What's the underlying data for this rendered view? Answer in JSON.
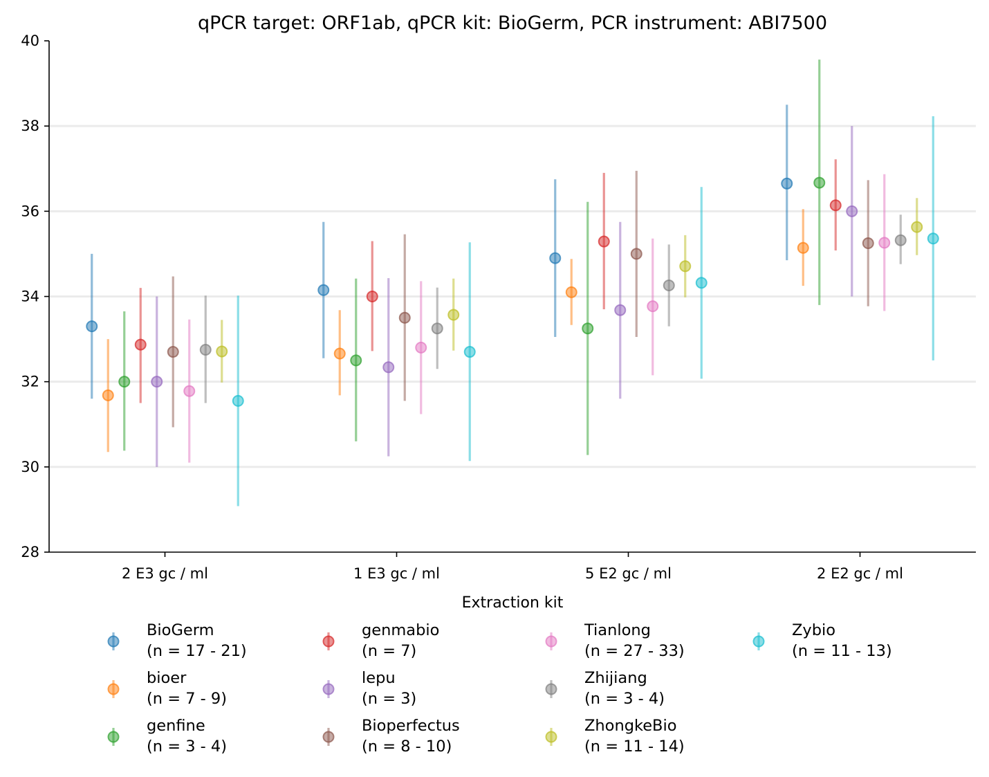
{
  "chart_data": {
    "type": "scatter",
    "title": "qPCR target: ORF1ab, qPCR kit: BioGerm, PCR instrument: ABI7500",
    "xlabel": "",
    "ylabel": "",
    "legend_title": "Extraction kit",
    "legend_placement": "bottom",
    "ylim": [
      28,
      40
    ],
    "yticks": [
      "28",
      "30",
      "32",
      "34",
      "36",
      "38",
      "40"
    ],
    "grid": "horizontal",
    "categories": [
      "2 E3 gc / ml",
      "1 E3 gc / ml",
      "5 E2 gc / ml",
      "2 E2 gc / ml"
    ],
    "series": [
      {
        "name": "BioGerm",
        "n_label": "(n = 17 - 21)",
        "color": "#1f77b4",
        "values": [
          33.3,
          34.15,
          34.9,
          36.65
        ],
        "lower": [
          31.6,
          32.55,
          33.05,
          34.85
        ],
        "upper": [
          35.0,
          35.75,
          36.75,
          38.5
        ]
      },
      {
        "name": "bioer",
        "n_label": "(n = 7 - 9)",
        "color": "#ff7f0e",
        "values": [
          31.68,
          32.66,
          34.1,
          35.14
        ],
        "lower": [
          30.35,
          31.68,
          33.33,
          34.25
        ],
        "upper": [
          33.0,
          33.68,
          34.88,
          36.05
        ]
      },
      {
        "name": "genfine",
        "n_label": "(n = 3 - 4)",
        "color": "#2ca02c",
        "values": [
          32.0,
          32.5,
          33.25,
          36.67
        ],
        "lower": [
          30.38,
          30.6,
          30.28,
          33.8
        ],
        "upper": [
          33.65,
          34.42,
          36.22,
          39.56
        ]
      },
      {
        "name": "genmabio",
        "n_label": "(n = 7)",
        "color": "#d62728",
        "values": [
          32.87,
          34.0,
          35.29,
          36.14
        ],
        "lower": [
          31.5,
          32.72,
          33.7,
          35.08
        ],
        "upper": [
          34.2,
          35.3,
          36.9,
          37.22
        ]
      },
      {
        "name": "lepu",
        "n_label": "(n = 3)",
        "color": "#9467bd",
        "values": [
          32.0,
          32.34,
          33.68,
          36.0
        ],
        "lower": [
          30.0,
          30.25,
          31.6,
          34.0
        ],
        "upper": [
          34.0,
          34.43,
          35.75,
          38.0
        ]
      },
      {
        "name": "Bioperfectus",
        "n_label": "(n = 8 - 10)",
        "color": "#8c564b",
        "values": [
          32.7,
          33.5,
          35.0,
          35.25
        ],
        "lower": [
          30.93,
          31.55,
          33.05,
          33.77
        ],
        "upper": [
          34.47,
          35.46,
          36.95,
          36.73
        ]
      },
      {
        "name": "Tianlong",
        "n_label": "(n = 27 - 33)",
        "color": "#e377c2",
        "values": [
          31.78,
          32.8,
          33.77,
          35.26
        ],
        "lower": [
          30.1,
          31.24,
          32.15,
          33.66
        ],
        "upper": [
          33.46,
          34.36,
          35.36,
          36.87
        ]
      },
      {
        "name": "Zhijiang",
        "n_label": "(n = 3 - 4)",
        "color": "#7f7f7f",
        "values": [
          32.75,
          33.25,
          34.26,
          35.32
        ],
        "lower": [
          31.5,
          32.3,
          33.3,
          34.76
        ],
        "upper": [
          34.02,
          34.21,
          35.22,
          35.92
        ]
      },
      {
        "name": "ZhongkeBio",
        "n_label": "(n = 11 - 14)",
        "color": "#bcbd22",
        "values": [
          32.71,
          33.57,
          34.71,
          35.63
        ],
        "lower": [
          31.98,
          32.73,
          33.98,
          34.97
        ],
        "upper": [
          33.45,
          34.42,
          35.44,
          36.31
        ]
      },
      {
        "name": "Zybio",
        "n_label": "(n = 11 - 13)",
        "color": "#17becf",
        "values": [
          31.55,
          32.7,
          34.32,
          35.36
        ],
        "lower": [
          29.08,
          30.14,
          32.07,
          32.5
        ],
        "upper": [
          34.02,
          35.27,
          36.57,
          38.23
        ]
      }
    ]
  }
}
